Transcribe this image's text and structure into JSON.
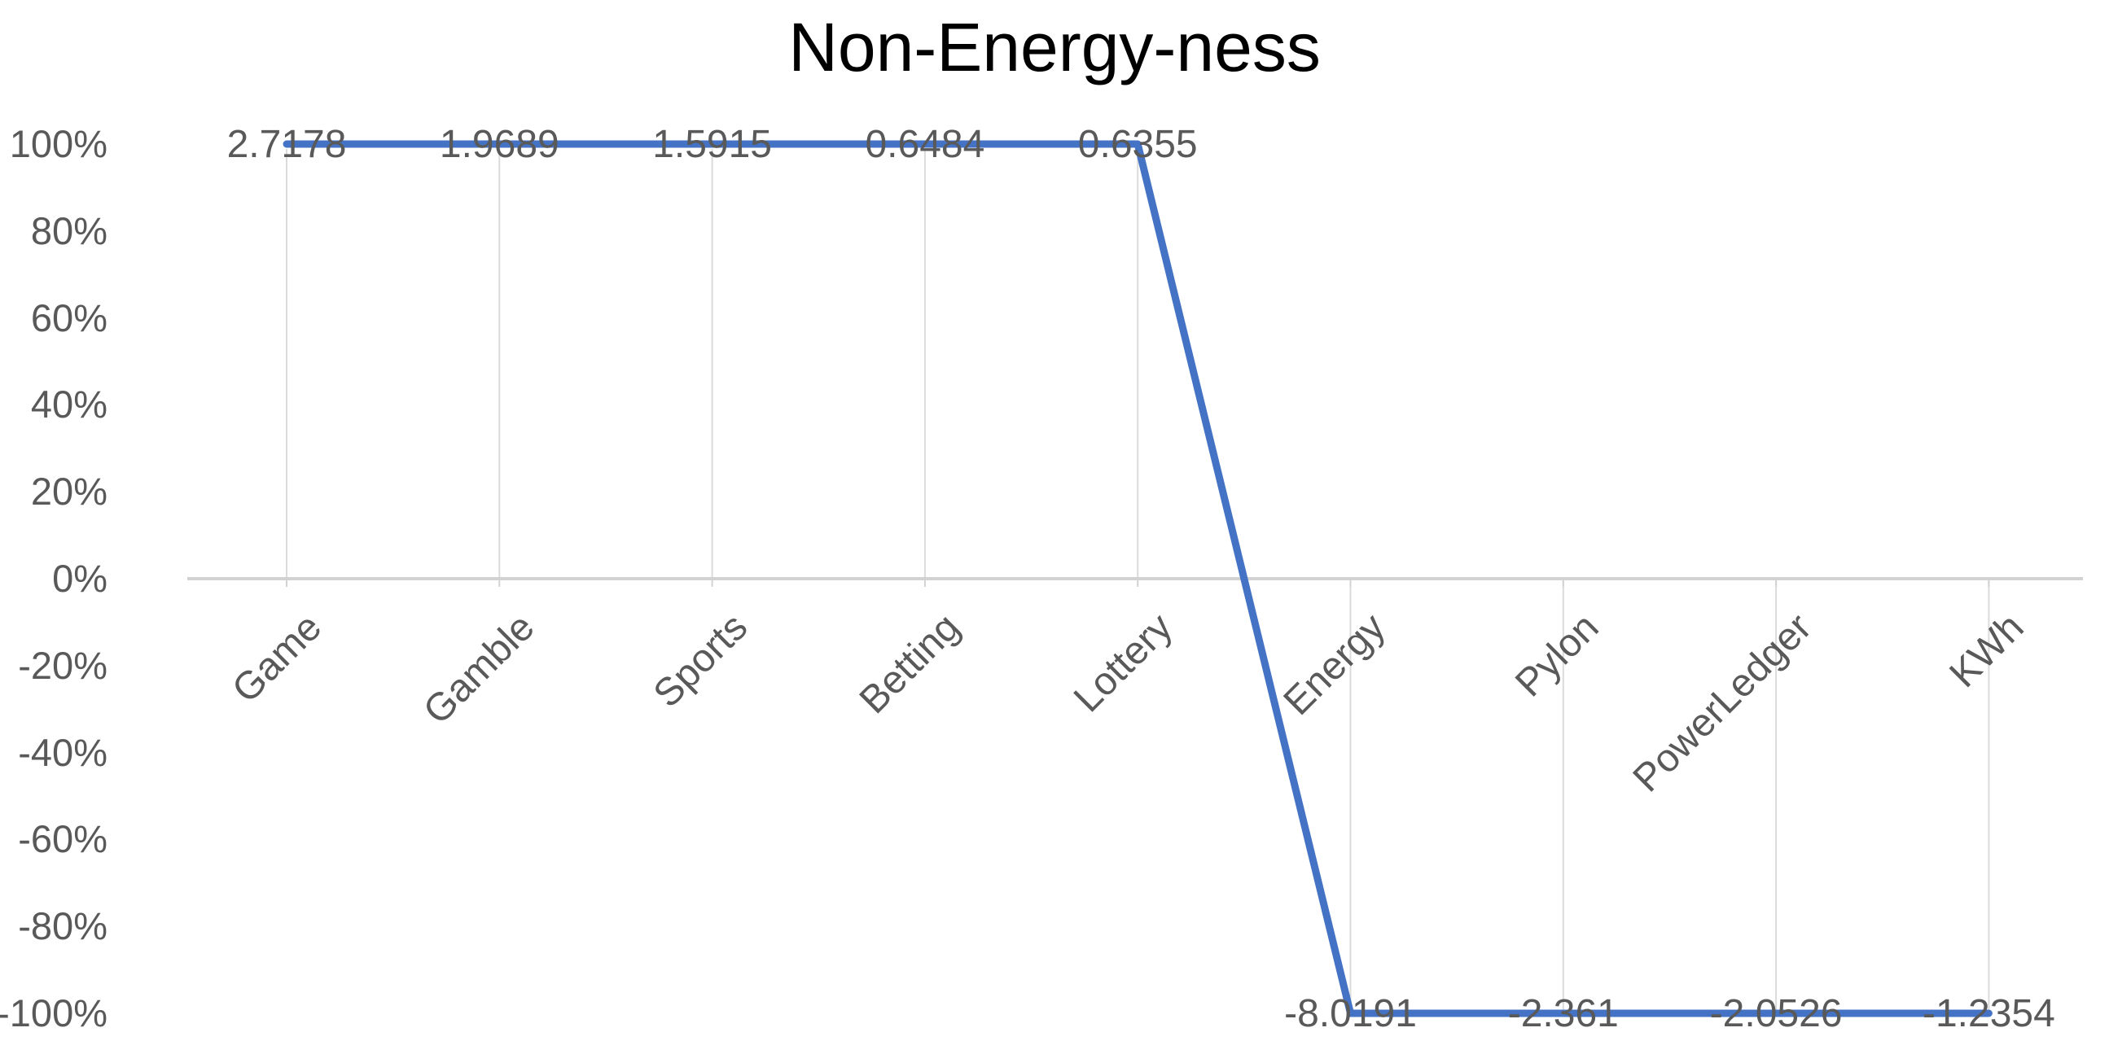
{
  "chart_data": {
    "type": "line",
    "title": "Non-Energy-ness",
    "categories": [
      "Game",
      "Gamble",
      "Sports",
      "Betting",
      "Lottery",
      "Energy",
      "Pylon",
      "PowerLedger",
      "KWh"
    ],
    "series": [
      {
        "name": "Non-Energy-ness",
        "values": [
          2.7178,
          1.9689,
          1.5915,
          0.6484,
          0.6355,
          -8.0191,
          -2.361,
          -2.0526,
          -1.2354
        ],
        "plotted_pct": [
          100,
          100,
          100,
          100,
          100,
          -100,
          -100,
          -100,
          -100
        ]
      }
    ],
    "data_labels": [
      "2.7178",
      "1.9689",
      "1.5915",
      "0.6484",
      "0.6355",
      "-8.0191",
      "-2.361",
      "-2.0526",
      "-1.2354"
    ],
    "y_ticks": [
      "100%",
      "80%",
      "60%",
      "40%",
      "20%",
      "0%",
      "-20%",
      "-40%",
      "-60%",
      "-80%",
      "-100%"
    ],
    "ylim": [
      -1,
      1
    ],
    "xlabel": "",
    "ylabel": "",
    "legend": "none",
    "grid": "drop-lines-only",
    "colors": {
      "line": "#4472C4",
      "labels": "#595959",
      "axis_line": "#D2D2D2",
      "drop_line": "#DBDBDB",
      "title": "#000000"
    }
  }
}
